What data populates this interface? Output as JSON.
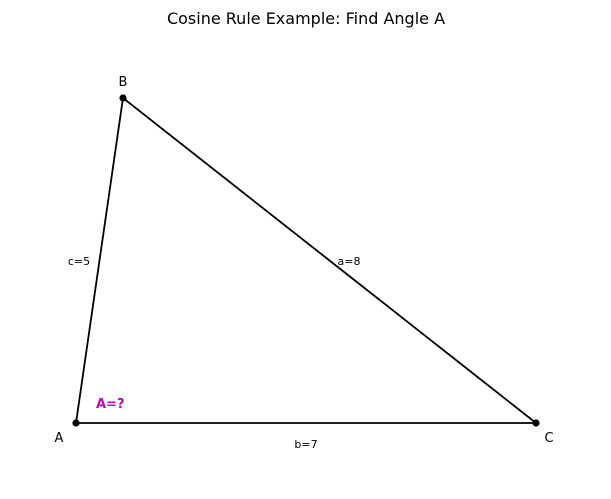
{
  "title": "Cosine Rule Example: Find Angle A",
  "vertices": {
    "A": "A",
    "B": "B",
    "C": "C"
  },
  "sides": {
    "a": "a=8",
    "b": "b=7",
    "c": "c=5"
  },
  "unknown": "A=?",
  "colors": {
    "line": "#000000",
    "unknown": "#c000c0"
  }
}
